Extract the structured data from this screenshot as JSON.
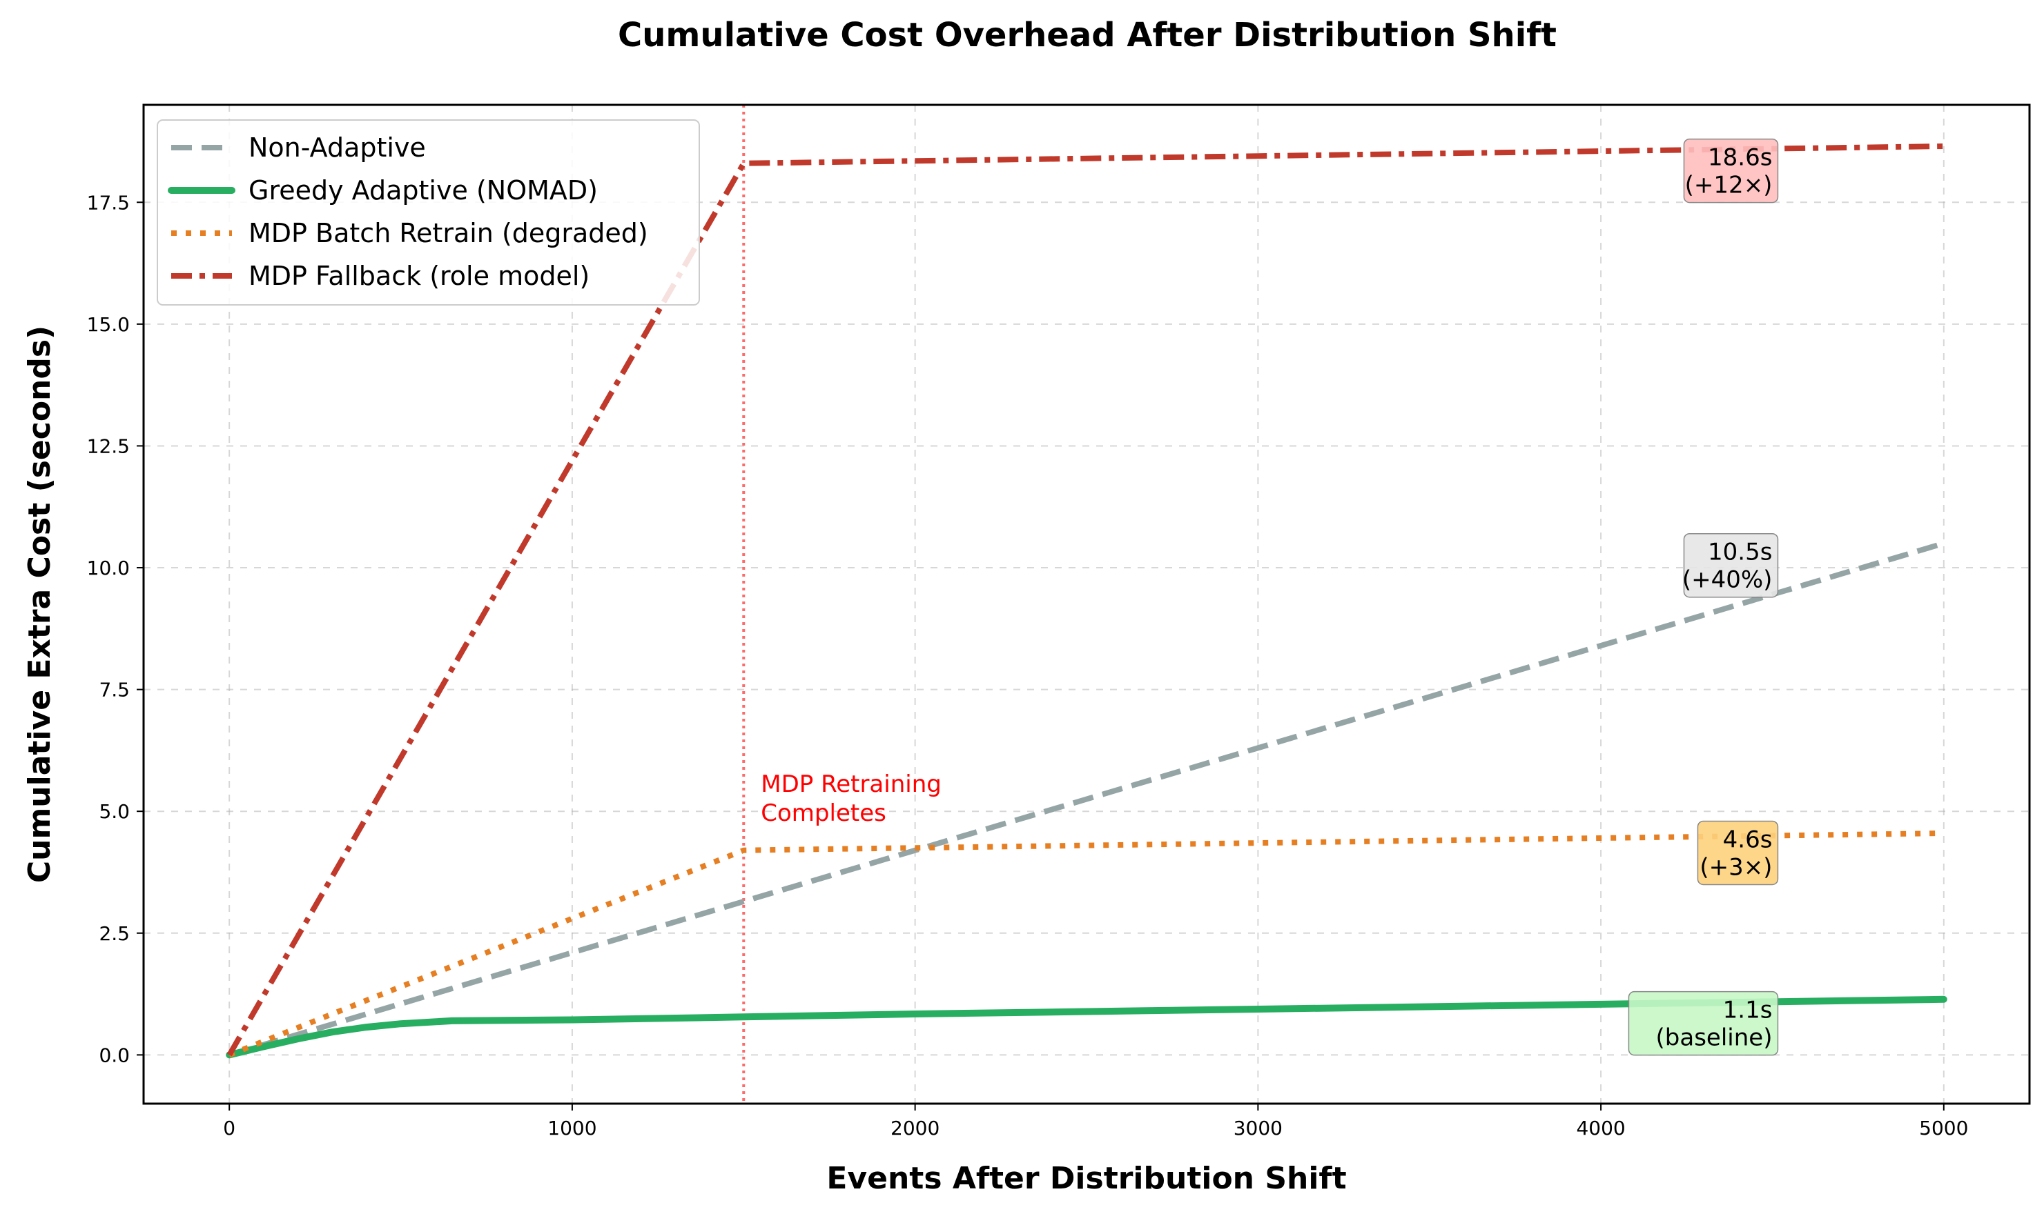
{
  "chart_data": {
    "type": "line",
    "title": "Cumulative Cost Overhead After Distribution Shift",
    "xlabel": "Events After Distribution Shift",
    "ylabel": "Cumulative Extra Cost (seconds)",
    "xlim": [
      -250,
      5250
    ],
    "ylim": [
      -1.0,
      19.5
    ],
    "xticks": [
      0,
      1000,
      2000,
      3000,
      4000,
      5000
    ],
    "xtick_labels": [
      "0",
      "1000",
      "2000",
      "3000",
      "4000",
      "5000"
    ],
    "yticks": [
      0.0,
      2.5,
      5.0,
      7.5,
      10.0,
      12.5,
      15.0,
      17.5
    ],
    "ytick_labels": [
      "0.0",
      "2.5",
      "5.0",
      "7.5",
      "10.0",
      "12.5",
      "15.0",
      "17.5"
    ],
    "grid": true,
    "legend_position": "top-left",
    "series": [
      {
        "name": "Non-Adaptive",
        "color": "#95a5a6",
        "style": "dashed",
        "x": [
          0,
          5000
        ],
        "y": [
          0,
          10.5
        ]
      },
      {
        "name": "Greedy Adaptive (NOMAD)",
        "color": "#27ae60",
        "style": "solid",
        "x": [
          0,
          100,
          200,
          300,
          400,
          500,
          650,
          1000,
          1500,
          2000,
          3000,
          4000,
          5000
        ],
        "y": [
          0,
          0.17,
          0.33,
          0.47,
          0.57,
          0.64,
          0.7,
          0.72,
          0.78,
          0.84,
          0.94,
          1.04,
          1.14
        ]
      },
      {
        "name": "MDP Batch Retrain (degraded)",
        "color": "#e67e22",
        "style": "dotted",
        "x": [
          0,
          1500,
          2000,
          3000,
          4000,
          5000
        ],
        "y": [
          0,
          4.2,
          4.25,
          4.35,
          4.45,
          4.55
        ]
      },
      {
        "name": "MDP Fallback (role model)",
        "color": "#c0392b",
        "style": "dashdot",
        "x": [
          0,
          1500,
          3000,
          5000
        ],
        "y": [
          0,
          18.3,
          18.45,
          18.65
        ]
      }
    ],
    "vline": {
      "x": 1500,
      "color": "#ff6b6b",
      "label_line1": "MDP Retraining",
      "label_line2": "Completes"
    },
    "annotations": [
      {
        "line1": "18.6s",
        "line2": "(+12×)",
        "x": 4500,
        "y": 18.6,
        "bg": "#ffbfbf"
      },
      {
        "line1": "10.5s",
        "line2": "(+40%)",
        "x": 4500,
        "y": 10.5,
        "bg": "#e6e6e6"
      },
      {
        "line1": "4.6s",
        "line2": "(+3×)",
        "x": 4500,
        "y": 4.6,
        "bg": "#fdd27d"
      },
      {
        "line1": "1.1s",
        "line2": "(baseline)",
        "x": 4500,
        "y": 1.1,
        "bg": "#c6f7c6"
      }
    ]
  }
}
